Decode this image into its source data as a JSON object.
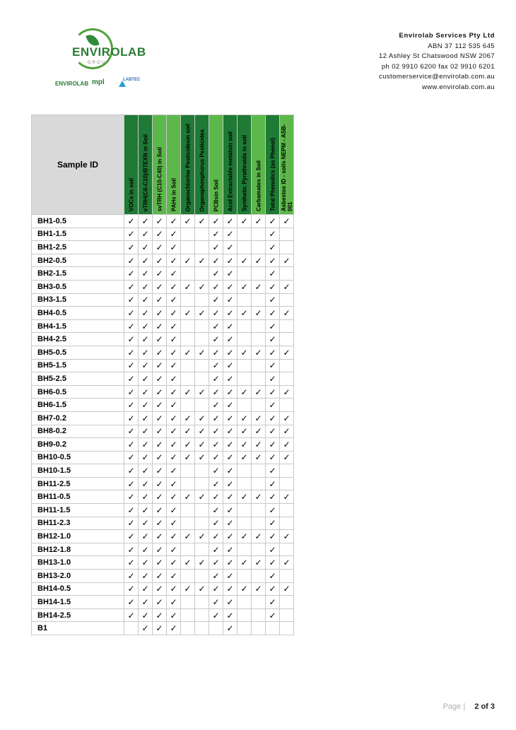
{
  "logo": {
    "word": "ENVIROLAB",
    "group": "GROUP",
    "sub_logos": [
      "ENVIROLAB",
      "mpl",
      "LABTEC"
    ]
  },
  "company": {
    "name": "Envirolab Services Pty Ltd",
    "abn": "ABN 37 112 535 645",
    "address": "12 Ashley St Chatswood NSW 2067",
    "phone_fax": "ph 02 9910 6200   fax 02 9910 6201",
    "email": "customerservice@envirolab.com.au",
    "web": "www.envirolab.com.au"
  },
  "colors": {
    "header_dark": "#1e7a34",
    "header_light": "#5cb84a",
    "sample_header_bg": "#d9d9d9"
  },
  "table": {
    "sample_header": "Sample ID",
    "tick_symbol": "✓",
    "columns": [
      {
        "label": "VOCs in soil",
        "shade": "dark"
      },
      {
        "label": "vTRH(C6-C10)/BTEXN in Soil",
        "shade": "dark"
      },
      {
        "label": "svTRH (C10-C40) in Soil",
        "shade": "light"
      },
      {
        "label": "PAHs in Soil",
        "shade": "light"
      },
      {
        "label": "Organochlorine Pesticidesin soil",
        "shade": "dark"
      },
      {
        "label": "Organophosphorus Pesticides",
        "shade": "dark"
      },
      {
        "label": "PCBsin Soil",
        "shade": "light"
      },
      {
        "label": "Acid Extractable metalsin soil",
        "shade": "dark"
      },
      {
        "label": "Synthetic Pyrethroids in soil",
        "shade": "dark"
      },
      {
        "label": "Carbamates in Soil",
        "shade": "light"
      },
      {
        "label": "Total Phenolics (as Phenol)",
        "shade": "dark"
      },
      {
        "label": "Asbestos ID - soils NEPM - ASB-001",
        "shade": "light"
      }
    ],
    "rows": [
      {
        "id": "BH1-0.5",
        "cells": [
          1,
          1,
          1,
          1,
          1,
          1,
          1,
          1,
          1,
          1,
          1,
          1
        ]
      },
      {
        "id": "BH1-1.5",
        "cells": [
          1,
          1,
          1,
          1,
          0,
          0,
          1,
          1,
          0,
          0,
          1,
          0
        ]
      },
      {
        "id": "BH1-2.5",
        "cells": [
          1,
          1,
          1,
          1,
          0,
          0,
          1,
          1,
          0,
          0,
          1,
          0
        ]
      },
      {
        "id": "BH2-0.5",
        "cells": [
          1,
          1,
          1,
          1,
          1,
          1,
          1,
          1,
          1,
          1,
          1,
          1
        ]
      },
      {
        "id": "BH2-1.5",
        "cells": [
          1,
          1,
          1,
          1,
          0,
          0,
          1,
          1,
          0,
          0,
          1,
          0
        ]
      },
      {
        "id": "BH3-0.5",
        "cells": [
          1,
          1,
          1,
          1,
          1,
          1,
          1,
          1,
          1,
          1,
          1,
          1
        ]
      },
      {
        "id": "BH3-1.5",
        "cells": [
          1,
          1,
          1,
          1,
          0,
          0,
          1,
          1,
          0,
          0,
          1,
          0
        ]
      },
      {
        "id": "BH4-0.5",
        "cells": [
          1,
          1,
          1,
          1,
          1,
          1,
          1,
          1,
          1,
          1,
          1,
          1
        ]
      },
      {
        "id": "BH4-1.5",
        "cells": [
          1,
          1,
          1,
          1,
          0,
          0,
          1,
          1,
          0,
          0,
          1,
          0
        ]
      },
      {
        "id": "BH4-2.5",
        "cells": [
          1,
          1,
          1,
          1,
          0,
          0,
          1,
          1,
          0,
          0,
          1,
          0
        ]
      },
      {
        "id": "BH5-0.5",
        "cells": [
          1,
          1,
          1,
          1,
          1,
          1,
          1,
          1,
          1,
          1,
          1,
          1
        ]
      },
      {
        "id": "BH5-1.5",
        "cells": [
          1,
          1,
          1,
          1,
          0,
          0,
          1,
          1,
          0,
          0,
          1,
          0
        ]
      },
      {
        "id": "BH5-2.5",
        "cells": [
          1,
          1,
          1,
          1,
          0,
          0,
          1,
          1,
          0,
          0,
          1,
          0
        ]
      },
      {
        "id": "BH6-0.5",
        "cells": [
          1,
          1,
          1,
          1,
          1,
          1,
          1,
          1,
          1,
          1,
          1,
          1
        ]
      },
      {
        "id": "BH6-1.5",
        "cells": [
          1,
          1,
          1,
          1,
          0,
          0,
          1,
          1,
          0,
          0,
          1,
          0
        ]
      },
      {
        "id": "BH7-0.2",
        "cells": [
          1,
          1,
          1,
          1,
          1,
          1,
          1,
          1,
          1,
          1,
          1,
          1
        ]
      },
      {
        "id": "BH8-0.2",
        "cells": [
          1,
          1,
          1,
          1,
          1,
          1,
          1,
          1,
          1,
          1,
          1,
          1
        ]
      },
      {
        "id": "BH9-0.2",
        "cells": [
          1,
          1,
          1,
          1,
          1,
          1,
          1,
          1,
          1,
          1,
          1,
          1
        ]
      },
      {
        "id": "BH10-0.5",
        "cells": [
          1,
          1,
          1,
          1,
          1,
          1,
          1,
          1,
          1,
          1,
          1,
          1
        ]
      },
      {
        "id": "BH10-1.5",
        "cells": [
          1,
          1,
          1,
          1,
          0,
          0,
          1,
          1,
          0,
          0,
          1,
          0
        ]
      },
      {
        "id": "BH11-2.5",
        "cells": [
          1,
          1,
          1,
          1,
          0,
          0,
          1,
          1,
          0,
          0,
          1,
          0
        ]
      },
      {
        "id": "BH11-0.5",
        "cells": [
          1,
          1,
          1,
          1,
          1,
          1,
          1,
          1,
          1,
          1,
          1,
          1
        ]
      },
      {
        "id": "BH11-1.5",
        "cells": [
          1,
          1,
          1,
          1,
          0,
          0,
          1,
          1,
          0,
          0,
          1,
          0
        ]
      },
      {
        "id": "BH11-2.3",
        "cells": [
          1,
          1,
          1,
          1,
          0,
          0,
          1,
          1,
          0,
          0,
          1,
          0
        ]
      },
      {
        "id": "BH12-1.0",
        "cells": [
          1,
          1,
          1,
          1,
          1,
          1,
          1,
          1,
          1,
          1,
          1,
          1
        ]
      },
      {
        "id": "BH12-1.8",
        "cells": [
          1,
          1,
          1,
          1,
          0,
          0,
          1,
          1,
          0,
          0,
          1,
          0
        ]
      },
      {
        "id": "BH13-1.0",
        "cells": [
          1,
          1,
          1,
          1,
          1,
          1,
          1,
          1,
          1,
          1,
          1,
          1
        ]
      },
      {
        "id": "BH13-2.0",
        "cells": [
          1,
          1,
          1,
          1,
          0,
          0,
          1,
          1,
          0,
          0,
          1,
          0
        ]
      },
      {
        "id": "BH14-0.5",
        "cells": [
          1,
          1,
          1,
          1,
          1,
          1,
          1,
          1,
          1,
          1,
          1,
          1
        ]
      },
      {
        "id": "BH14-1.5",
        "cells": [
          1,
          1,
          1,
          1,
          0,
          0,
          1,
          1,
          0,
          0,
          1,
          0
        ]
      },
      {
        "id": "BH14-2.5",
        "cells": [
          1,
          1,
          1,
          1,
          0,
          0,
          1,
          1,
          0,
          0,
          1,
          0
        ]
      },
      {
        "id": "B1",
        "cells": [
          0,
          1,
          1,
          1,
          0,
          0,
          0,
          1,
          0,
          0,
          0,
          0
        ]
      }
    ]
  },
  "footer": {
    "page_label": "Page |",
    "page_number": "2 of 3"
  }
}
